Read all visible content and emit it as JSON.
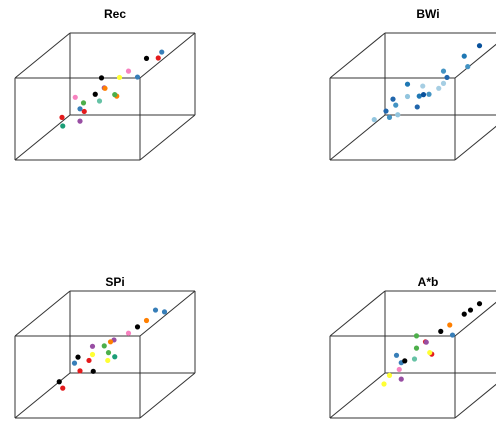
{
  "chart_data": [
    {
      "type": "scatter3d",
      "title": "Rec",
      "x": [
        0.2,
        0.3,
        0.35,
        0.4,
        0.45,
        0.5,
        0.55,
        0.6,
        0.25,
        0.7,
        0.65,
        0.4,
        0.5,
        0.3,
        0.8,
        0.55,
        0.45,
        0.6,
        0.35,
        0.75
      ],
      "y": [
        0.3,
        0.35,
        0.45,
        0.5,
        0.55,
        0.6,
        0.65,
        0.7,
        0.25,
        0.8,
        0.6,
        0.4,
        0.5,
        0.2,
        0.85,
        0.45,
        0.7,
        0.55,
        0.6,
        0.75
      ],
      "z": [
        0.4,
        0.5,
        0.45,
        0.55,
        0.6,
        0.5,
        0.65,
        0.7,
        0.3,
        0.8,
        0.75,
        0.35,
        0.4,
        0.5,
        0.85,
        0.6,
        0.55,
        0.45,
        0.3,
        0.9
      ],
      "colors": [
        "#e41a1c",
        "#377eb8",
        "#4daf4a",
        "#000000",
        "#984ea3",
        "#ff7f00",
        "#ffff33",
        "#f781bf",
        "#1b9e77",
        "#000000",
        "#377eb8",
        "#e41a1c",
        "#66c2a5",
        "#984ea3",
        "#377eb8",
        "#ff7f00",
        "#000000",
        "#4daf4a",
        "#f781bf",
        "#e41a1c"
      ]
    },
    {
      "type": "scatter3d",
      "title": "BWi",
      "x": [
        0.25,
        0.3,
        0.4,
        0.45,
        0.5,
        0.55,
        0.6,
        0.65,
        0.2,
        0.7,
        0.6,
        0.35,
        0.5,
        0.3,
        0.8,
        0.55,
        0.4,
        0.65,
        0.35,
        0.75
      ],
      "y": [
        0.35,
        0.3,
        0.5,
        0.45,
        0.6,
        0.55,
        0.7,
        0.65,
        0.3,
        0.8,
        0.55,
        0.45,
        0.4,
        0.25,
        0.9,
        0.5,
        0.65,
        0.6,
        0.55,
        0.7
      ],
      "z": [
        0.45,
        0.4,
        0.5,
        0.6,
        0.55,
        0.45,
        0.7,
        0.65,
        0.35,
        0.85,
        0.7,
        0.4,
        0.45,
        0.55,
        0.9,
        0.55,
        0.5,
        0.5,
        0.35,
        0.8
      ],
      "colors": [
        "#2166ac",
        "#4393c3",
        "#92c5de",
        "#1f78b4",
        "#a6cee3",
        "#08519c",
        "#4393c3",
        "#2166ac",
        "#92c5de",
        "#1f78b4",
        "#a6cee3",
        "#4393c3",
        "#2166ac",
        "#92c5de",
        "#08519c",
        "#4393c3",
        "#1f78b4",
        "#a6cee3",
        "#2166ac",
        "#4393c3"
      ]
    },
    {
      "type": "scatter3d",
      "title": "SPi",
      "x": [
        0.2,
        0.35,
        0.3,
        0.45,
        0.4,
        0.55,
        0.5,
        0.65,
        0.25,
        0.75,
        0.6,
        0.45,
        0.55,
        0.3,
        0.8,
        0.5,
        0.4,
        0.6,
        0.35,
        0.7
      ],
      "y": [
        0.25,
        0.4,
        0.45,
        0.55,
        0.5,
        0.65,
        0.6,
        0.7,
        0.2,
        0.85,
        0.65,
        0.35,
        0.55,
        0.3,
        0.8,
        0.4,
        0.6,
        0.5,
        0.55,
        0.75
      ],
      "z": [
        0.35,
        0.55,
        0.4,
        0.6,
        0.5,
        0.55,
        0.6,
        0.75,
        0.3,
        0.85,
        0.7,
        0.4,
        0.45,
        0.5,
        0.9,
        0.55,
        0.5,
        0.45,
        0.35,
        0.8
      ],
      "colors": [
        "#000000",
        "#e41a1c",
        "#377eb8",
        "#4daf4a",
        "#ffff33",
        "#984ea3",
        "#ff7f00",
        "#000000",
        "#e41a1c",
        "#377eb8",
        "#f781bf",
        "#000000",
        "#4daf4a",
        "#e41a1c",
        "#377eb8",
        "#ffff33",
        "#984ea3",
        "#1b9e77",
        "#000000",
        "#ff7f00"
      ]
    },
    {
      "type": "scatter3d",
      "title": "A*b",
      "x": [
        0.3,
        0.35,
        0.4,
        0.45,
        0.5,
        0.55,
        0.6,
        0.65,
        0.3,
        0.75,
        0.65,
        0.4,
        0.5,
        0.35,
        0.8,
        0.55,
        0.45,
        0.6,
        0.4,
        0.7
      ],
      "y": [
        0.3,
        0.4,
        0.45,
        0.55,
        0.6,
        0.65,
        0.7,
        0.75,
        0.25,
        0.85,
        0.6,
        0.4,
        0.5,
        0.2,
        0.9,
        0.45,
        0.7,
        0.55,
        0.6,
        0.8
      ],
      "z": [
        0.4,
        0.5,
        0.45,
        0.55,
        0.6,
        0.5,
        0.65,
        0.7,
        0.3,
        0.85,
        0.75,
        0.35,
        0.4,
        0.5,
        0.9,
        0.6,
        0.55,
        0.45,
        0.3,
        0.85
      ],
      "colors": [
        "#ffff33",
        "#377eb8",
        "#000000",
        "#4daf4a",
        "#e41a1c",
        "#984ea3",
        "#000000",
        "#ff7f00",
        "#ffff33",
        "#000000",
        "#377eb8",
        "#f781bf",
        "#66c2a5",
        "#984ea3",
        "#000000",
        "#e41a1c",
        "#4daf4a",
        "#ffff33",
        "#377eb8",
        "#000000"
      ]
    }
  ]
}
